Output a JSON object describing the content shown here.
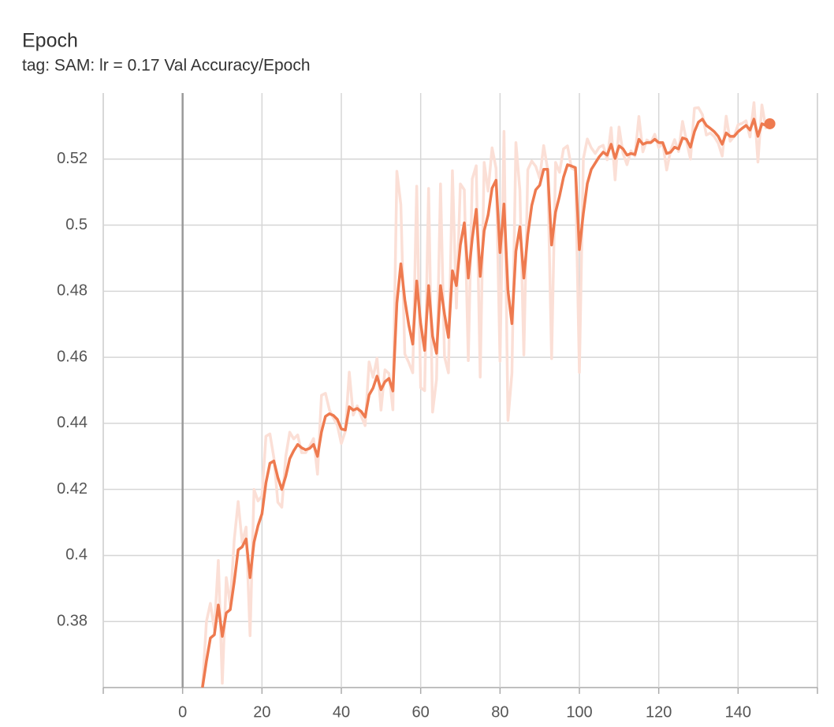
{
  "chart_data": {
    "type": "line",
    "title": "Epoch",
    "subtitle": "tag: SAM: lr = 0.17 Val Accuracy/Epoch",
    "x": [
      5,
      6,
      7,
      8,
      9,
      10,
      11,
      12,
      13,
      14,
      15,
      16,
      17,
      18,
      19,
      20,
      21,
      22,
      23,
      24,
      25,
      26,
      27,
      28,
      29,
      30,
      31,
      32,
      33,
      34,
      35,
      36,
      37,
      38,
      39,
      40,
      41,
      42,
      43,
      44,
      45,
      46,
      47,
      48,
      49,
      50,
      51,
      52,
      53,
      54,
      55,
      56,
      57,
      58,
      59,
      60,
      61,
      62,
      63,
      64,
      65,
      66,
      67,
      68,
      69,
      70,
      71,
      72,
      73,
      74,
      75,
      76,
      77,
      78,
      79,
      80,
      81,
      82,
      83,
      84,
      85,
      86,
      87,
      88,
      89,
      90,
      91,
      92,
      93,
      94,
      95,
      96,
      97,
      98,
      99,
      100,
      101,
      102,
      103,
      104,
      105,
      106,
      107,
      108,
      109,
      110,
      111,
      112,
      113,
      114,
      115,
      116,
      117,
      118,
      119,
      120,
      121,
      122,
      123,
      124,
      125,
      126,
      127,
      128,
      129,
      130,
      131,
      132,
      133,
      134,
      135,
      136,
      137,
      138,
      139,
      140,
      141,
      142,
      143,
      144,
      145,
      146,
      147,
      148
    ],
    "series": [
      {
        "color": "#fbdfd6",
        "values": [
          0.36,
          0.38,
          0.3855,
          0.3775,
          0.3985,
          0.3613,
          0.3933,
          0.3851,
          0.4046,
          0.4163,
          0.404,
          0.4086,
          0.3757,
          0.42,
          0.4165,
          0.418,
          0.4361,
          0.4368,
          0.4296,
          0.4161,
          0.4146,
          0.43,
          0.4373,
          0.4353,
          0.4365,
          0.4311,
          0.4311,
          0.433,
          0.4354,
          0.4246,
          0.4485,
          0.4491,
          0.4441,
          0.4416,
          0.4394,
          0.4339,
          0.4375,
          0.4555,
          0.4425,
          0.4453,
          0.4422,
          0.4393,
          0.4586,
          0.4539,
          0.4597,
          0.444,
          0.4562,
          0.4551,
          0.4441,
          0.5163,
          0.5062,
          0.461,
          0.4584,
          0.4553,
          0.5118,
          0.4508,
          0.4499,
          0.5111,
          0.4434,
          0.4534,
          0.5125,
          0.4602,
          0.4553,
          0.5165,
          0.4749,
          0.5125,
          0.5107,
          0.459,
          0.514,
          0.518,
          0.454,
          0.519,
          0.5103,
          0.5234,
          0.5172,
          0.4588,
          0.5284,
          0.4409,
          0.4552,
          0.525,
          0.5106,
          0.4607,
          0.5168,
          0.5194,
          0.5178,
          0.5142,
          0.5241,
          0.5169,
          0.4596,
          0.519,
          0.516,
          0.5231,
          0.524,
          0.5173,
          0.5166,
          0.4554,
          0.5201,
          0.5261,
          0.5234,
          0.5217,
          0.5236,
          0.5242,
          0.5198,
          0.5295,
          0.5137,
          0.5297,
          0.5217,
          0.5183,
          0.5225,
          0.5209,
          0.5329,
          0.5222,
          0.5258,
          0.525,
          0.5275,
          0.5235,
          0.525,
          0.5167,
          0.5227,
          0.5259,
          0.5223,
          0.5314,
          0.5254,
          0.52,
          0.5354,
          0.5356,
          0.5335,
          0.5273,
          0.5279,
          0.5268,
          0.5248,
          0.5209,
          0.533,
          0.5254,
          0.5269,
          0.5304,
          0.5308,
          0.5316,
          0.5267,
          0.5371,
          0.5191,
          0.5364,
          0.5294,
          0.5315
        ]
      },
      {
        "color": "#ee7a4f",
        "values": [
          0.36,
          0.368,
          0.375,
          0.376,
          0.385,
          0.3755,
          0.3826,
          0.3836,
          0.392,
          0.4017,
          0.4026,
          0.405,
          0.3933,
          0.404,
          0.409,
          0.4126,
          0.422,
          0.4279,
          0.4286,
          0.4236,
          0.42,
          0.424,
          0.4293,
          0.4317,
          0.4336,
          0.4326,
          0.432,
          0.4324,
          0.4336,
          0.43,
          0.4374,
          0.4421,
          0.4429,
          0.4424,
          0.4412,
          0.4383,
          0.438,
          0.445,
          0.444,
          0.4445,
          0.4436,
          0.4419,
          0.4486,
          0.4507,
          0.4543,
          0.4502,
          0.4526,
          0.4536,
          0.4498,
          0.4764,
          0.4883,
          0.4774,
          0.4698,
          0.464,
          0.4831,
          0.4702,
          0.4621,
          0.4817,
          0.4664,
          0.4612,
          0.4817,
          0.4731,
          0.466,
          0.4862,
          0.4817,
          0.494,
          0.5007,
          0.484,
          0.496,
          0.5048,
          0.4845,
          0.4983,
          0.5031,
          0.5112,
          0.5136,
          0.4917,
          0.5064,
          0.4802,
          0.4702,
          0.4921,
          0.4995,
          0.484,
          0.4971,
          0.506,
          0.5107,
          0.5121,
          0.5169,
          0.5169,
          0.494,
          0.504,
          0.5088,
          0.5145,
          0.5183,
          0.5179,
          0.5174,
          0.4926,
          0.5036,
          0.5126,
          0.5169,
          0.5188,
          0.5207,
          0.5221,
          0.5212,
          0.5245,
          0.5202,
          0.524,
          0.5231,
          0.5212,
          0.5217,
          0.5214,
          0.526,
          0.5245,
          0.525,
          0.525,
          0.526,
          0.525,
          0.525,
          0.5217,
          0.5221,
          0.5236,
          0.5231,
          0.5264,
          0.526,
          0.5236,
          0.5283,
          0.5312,
          0.5321,
          0.5302,
          0.5293,
          0.5283,
          0.5269,
          0.5245,
          0.5279,
          0.5269,
          0.5269,
          0.5283,
          0.5293,
          0.5302,
          0.5288,
          0.5321,
          0.5269,
          0.5307,
          0.5302,
          0.5307
        ]
      }
    ],
    "xlim": [
      -20,
      160
    ],
    "ylim": [
      0.36,
      0.54
    ],
    "xticks": [
      0,
      20,
      40,
      60,
      80,
      100,
      120,
      140
    ],
    "yticks": [
      0.38,
      0.4,
      0.42,
      0.44,
      0.46,
      0.48,
      0.5,
      0.52
    ],
    "grid": true
  }
}
